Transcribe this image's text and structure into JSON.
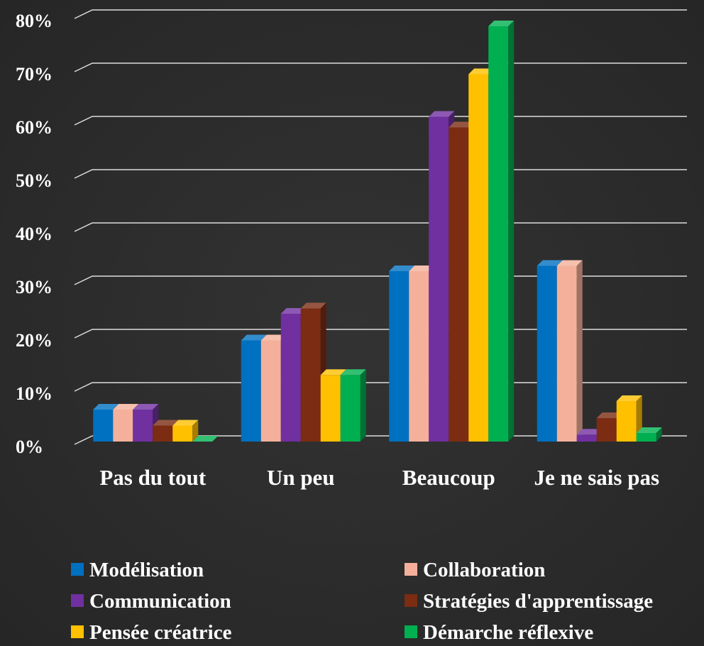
{
  "chart_data": {
    "type": "bar3d",
    "categories": [
      "Pas du tout",
      "Un peu",
      "Beaucoup",
      "Je ne sais pas"
    ],
    "series": [
      {
        "name": "Modélisation",
        "color": "#0070c0",
        "values": [
          6,
          19,
          32,
          33
        ]
      },
      {
        "name": "Collaboration",
        "color": "#f4b09a",
        "values": [
          6,
          19,
          32,
          33
        ]
      },
      {
        "name": "Communication",
        "color": "#7030a0",
        "values": [
          6,
          24,
          61,
          1.3
        ]
      },
      {
        "name": "Stratégies d'apprentissage",
        "color": "#7b2c12",
        "values": [
          3,
          25,
          59,
          4.4
        ]
      },
      {
        "name": "Pensée créatrice",
        "color": "#ffc000",
        "values": [
          3,
          12.5,
          69,
          7.6
        ]
      },
      {
        "name": "Démarche réflexive",
        "color": "#00b050",
        "values": [
          0,
          12.5,
          78,
          1.6
        ]
      }
    ],
    "ylim": [
      0,
      80
    ],
    "yticks": [
      {
        "value": 0,
        "label": "0%"
      },
      {
        "value": 10,
        "label": "10%"
      },
      {
        "value": 20,
        "label": "20%"
      },
      {
        "value": 30,
        "label": "30%"
      },
      {
        "value": 40,
        "label": "40%"
      },
      {
        "value": 50,
        "label": "50%"
      },
      {
        "value": 60,
        "label": "60%"
      },
      {
        "value": 70,
        "label": "70%"
      },
      {
        "value": 80,
        "label": "80%"
      }
    ],
    "grid": true,
    "legend": "bottom"
  }
}
